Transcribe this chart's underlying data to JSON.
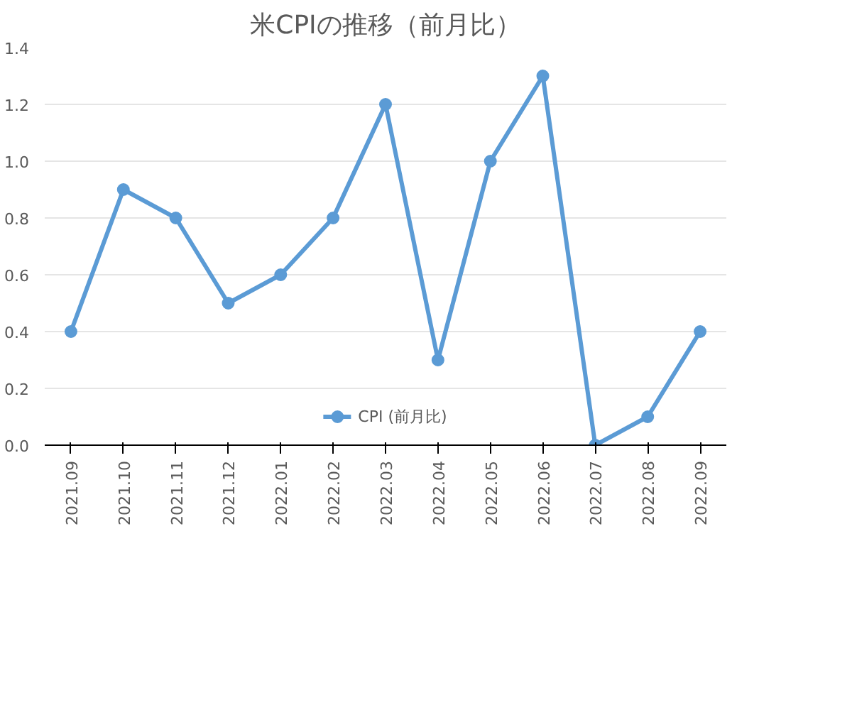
{
  "chart_data": {
    "type": "line",
    "title": "米CPIの推移（前月比）",
    "categories": [
      "2021.09",
      "2021.10",
      "2021.11",
      "2021.12",
      "2022.01",
      "2022.02",
      "2022.03",
      "2022.04",
      "2022.05",
      "2022.06",
      "2022.07",
      "2022.08",
      "2022.09"
    ],
    "series": [
      {
        "name": "CPI (前月比)",
        "color": "#5b9bd5",
        "values": [
          0.4,
          0.9,
          0.8,
          0.5,
          0.6,
          0.8,
          1.2,
          0.3,
          1.0,
          1.3,
          0.0,
          0.1,
          0.4
        ]
      }
    ],
    "ylim": [
      0,
      1.4
    ],
    "yticks": [
      {
        "value": 0,
        "label": "0.0"
      },
      {
        "value": 0.2,
        "label": "0.2"
      },
      {
        "value": 0.4,
        "label": "0.4"
      },
      {
        "value": 0.6,
        "label": "0.6"
      },
      {
        "value": 0.8,
        "label": "0.8"
      },
      {
        "value": 1.0,
        "label": "1.0"
      },
      {
        "value": 1.2,
        "label": "1.2"
      },
      {
        "value": 1.4,
        "label": "1.4"
      }
    ],
    "grid": "y",
    "legend": "bottom",
    "marker": "circle",
    "line_style": "solid"
  }
}
